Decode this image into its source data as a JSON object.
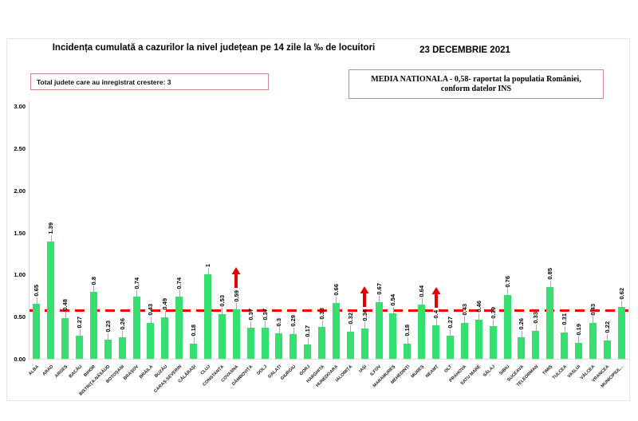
{
  "figure": {
    "title": "Incidența cumulată a cazurilor la nivel județean pe 14 zile la ‰ de locuitori",
    "date": "23 DECEMBRIE 2021",
    "growth_box_label": "Total judete care au inregistrat crestere: 3",
    "national_average_line1": "MEDIA NATIONALA - 0,58-  raportat la populatia  României,",
    "national_average_line2": "conform datelor INS"
  },
  "chart_data": {
    "type": "bar",
    "title": "Incidența cumulată a cazurilor la nivel județean pe 14 zile la ‰ de locuitori",
    "date": "23 DECEMBRIE 2021",
    "xlabel": "",
    "ylabel": "",
    "ylim": [
      0,
      3.0
    ],
    "yticks": [
      0,
      0.5,
      1.0,
      1.5,
      2.0,
      2.5,
      3.0
    ],
    "ytick_labels": [
      "0.00",
      "0.50",
      "1.00",
      "1.50",
      "2.00",
      "2.50",
      "3.00"
    ],
    "grid": false,
    "bar_color": "#35e070",
    "reference_line": {
      "value": 0.58,
      "color": "#ff0000",
      "style": "dashed",
      "meaning": "media nationala 0,58"
    },
    "increase_arrow_color": "#e60000",
    "increase_counties": [
      "COVASNA",
      "IAȘI",
      "NEAMȚ"
    ],
    "increase_indices": [
      14,
      23,
      28
    ],
    "categories": [
      "ALBA",
      "ARAD",
      "ARGEȘ",
      "BACĂU",
      "BIHOR",
      "BISTRIȚA-NĂSĂUD",
      "BOTOȘANI",
      "BRAȘOV",
      "BRĂILA",
      "BUZĂU",
      "CARAȘ-SEVERIN",
      "CĂLĂRAȘI",
      "CLUJ",
      "CONSTANȚA",
      "COVASNA",
      "DÂMBOVIȚA",
      "DOLJ",
      "GALAȚI",
      "GIURGIU",
      "GORJ",
      "HARGHITA",
      "HUNEDOARA",
      "IALOMIȚA",
      "IAȘI",
      "ILFOV",
      "MARAMUREȘ",
      "MEHEDINȚI",
      "MUREȘ",
      "NEAMȚ",
      "OLT",
      "PRAHOVA",
      "SATU MARE",
      "SĂLAJ",
      "SIBIU",
      "SUCEAVA",
      "TELEORMAN",
      "TIMIȘ",
      "TULCEA",
      "VASLUI",
      "VÂLCEA",
      "VRANCEA",
      "MUNICIPIUL..."
    ],
    "values": [
      0.65,
      1.39,
      0.48,
      0.27,
      0.8,
      0.23,
      0.26,
      0.74,
      0.43,
      0.49,
      0.74,
      0.18,
      1,
      0.53,
      0.59,
      0.37,
      0.37,
      0.3,
      0.29,
      0.17,
      0.38,
      0.66,
      0.32,
      0.36,
      0.67,
      0.54,
      0.18,
      0.64,
      0.4,
      0.27,
      0.43,
      0.46,
      0.39,
      0.76,
      0.26,
      0.33,
      0.85,
      0.31,
      0.19,
      0.43,
      0.22,
      0.62
    ]
  }
}
